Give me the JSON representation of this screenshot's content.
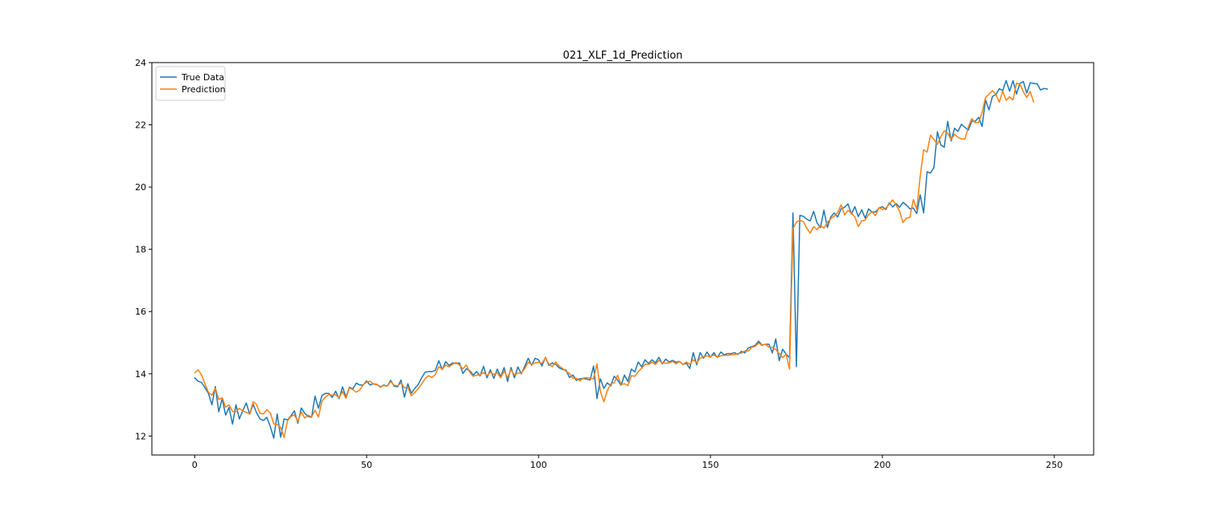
{
  "chart_data": {
    "type": "line",
    "title": "021_XLF_1d_Prediction",
    "xlabel": "",
    "ylabel": "",
    "xlim": [
      -12.45,
      261.45
    ],
    "ylim": [
      11.39,
      24.0
    ],
    "x_ticks": [
      0,
      50,
      100,
      150,
      200,
      250
    ],
    "y_ticks": [
      12,
      14,
      16,
      18,
      20,
      22,
      24
    ],
    "grid": false,
    "legend_position": "upper left",
    "series": [
      {
        "name": "True Data",
        "color": "#1f77b4",
        "values": [
          13.87,
          13.76,
          13.72,
          13.55,
          13.37,
          13.0,
          13.59,
          12.78,
          13.2,
          12.67,
          12.92,
          12.38,
          13.0,
          12.55,
          12.82,
          13.06,
          12.7,
          13.02,
          12.75,
          12.55,
          12.5,
          12.6,
          12.3,
          11.93,
          12.71,
          11.96,
          12.55,
          12.52,
          12.65,
          12.81,
          12.41,
          12.9,
          12.73,
          12.63,
          12.6,
          13.28,
          12.89,
          13.3,
          13.37,
          13.37,
          13.24,
          13.44,
          13.2,
          13.58,
          13.25,
          13.57,
          13.51,
          13.7,
          13.64,
          13.64,
          13.77,
          13.64,
          13.68,
          13.66,
          13.57,
          13.64,
          13.6,
          13.79,
          13.6,
          13.58,
          13.8,
          13.25,
          13.68,
          13.37,
          13.53,
          13.65,
          13.87,
          14.05,
          14.07,
          14.07,
          14.11,
          14.42,
          14.13,
          14.39,
          14.27,
          14.35,
          14.33,
          14.35,
          14.01,
          14.16,
          14.1,
          13.96,
          14.07,
          13.93,
          14.24,
          13.87,
          14.13,
          13.85,
          14.15,
          13.9,
          14.2,
          13.75,
          14.2,
          13.87,
          14.22,
          14.0,
          14.24,
          14.5,
          14.27,
          14.5,
          14.45,
          14.25,
          14.53,
          14.27,
          14.35,
          14.3,
          14.19,
          14.14,
          14.12,
          13.88,
          13.96,
          13.79,
          13.84,
          13.85,
          13.83,
          13.8,
          14.25,
          13.2,
          13.84,
          13.53,
          13.71,
          13.61,
          13.92,
          13.8,
          13.63,
          13.96,
          13.75,
          14.15,
          14.06,
          14.38,
          14.22,
          14.45,
          14.33,
          14.45,
          14.35,
          14.53,
          14.32,
          14.47,
          14.38,
          14.43,
          14.37,
          14.4,
          14.3,
          14.34,
          14.17,
          14.68,
          14.29,
          14.68,
          14.5,
          14.7,
          14.53,
          14.68,
          14.52,
          14.7,
          14.61,
          14.65,
          14.65,
          14.68,
          14.62,
          14.72,
          14.67,
          14.83,
          14.87,
          14.91,
          15.05,
          14.92,
          14.95,
          14.95,
          14.67,
          15.12,
          14.42,
          14.79,
          14.63,
          14.52,
          19.17,
          14.23,
          19.09,
          19.06,
          18.97,
          18.91,
          19.22,
          18.85,
          18.7,
          19.26,
          18.7,
          19.04,
          19.17,
          19.04,
          19.3,
          19.35,
          19.46,
          19.13,
          19.37,
          19.05,
          19.27,
          19.0,
          19.3,
          19.2,
          19.2,
          19.32,
          19.37,
          19.28,
          19.49,
          19.36,
          19.47,
          19.35,
          19.51,
          19.42,
          19.3,
          19.33,
          19.15,
          19.75,
          19.17,
          20.49,
          20.45,
          20.63,
          21.78,
          21.35,
          21.28,
          22.11,
          21.48,
          21.89,
          21.79,
          22.02,
          21.92,
          21.83,
          22.12,
          22.11,
          22.24,
          21.95,
          22.8,
          22.48,
          22.91,
          22.97,
          23.16,
          23.1,
          23.42,
          23.08,
          23.42,
          22.99,
          23.33,
          23.39,
          23.02,
          23.35,
          23.33,
          23.32,
          23.12,
          23.17,
          23.15
        ]
      },
      {
        "name": "Prediction",
        "color": "#ff7f0e",
        "values": [
          14.03,
          14.13,
          13.96,
          13.67,
          13.4,
          13.31,
          13.54,
          13.17,
          13.23,
          12.93,
          13.0,
          12.79,
          12.78,
          12.89,
          12.8,
          12.76,
          12.71,
          13.1,
          13.01,
          12.73,
          12.71,
          12.85,
          12.74,
          12.39,
          12.37,
          12.28,
          11.95,
          12.49,
          12.63,
          12.68,
          12.47,
          12.78,
          12.58,
          12.67,
          12.61,
          12.83,
          12.61,
          13.12,
          13.25,
          13.33,
          13.31,
          13.32,
          13.23,
          13.43,
          13.21,
          13.55,
          13.49,
          13.41,
          13.48,
          13.65,
          13.73,
          13.76,
          13.67,
          13.65,
          13.59,
          13.62,
          13.6,
          13.75,
          13.63,
          13.61,
          13.7,
          13.55,
          13.57,
          13.29,
          13.4,
          13.52,
          13.67,
          13.84,
          13.94,
          13.88,
          13.98,
          14.23,
          14.15,
          14.28,
          14.22,
          14.31,
          14.36,
          14.28,
          14.16,
          14.28,
          14.05,
          13.92,
          13.96,
          13.97,
          14.04,
          13.94,
          14.05,
          13.98,
          14.03,
          13.87,
          14.09,
          13.87,
          14.13,
          13.96,
          14.02,
          14.02,
          14.17,
          14.37,
          14.3,
          14.35,
          14.37,
          14.33,
          14.52,
          14.31,
          14.23,
          14.38,
          14.25,
          14.17,
          14.08,
          14.01,
          13.86,
          13.86,
          13.77,
          13.86,
          13.88,
          13.86,
          13.84,
          14.32,
          13.43,
          13.1,
          13.46,
          13.68,
          13.71,
          13.95,
          13.66,
          13.68,
          13.62,
          13.94,
          13.92,
          14.07,
          14.18,
          14.3,
          14.3,
          14.37,
          14.3,
          14.43,
          14.35,
          14.34,
          14.35,
          14.4,
          14.32,
          14.4,
          14.3,
          14.38,
          14.3,
          14.45,
          14.35,
          14.5,
          14.55,
          14.57,
          14.55,
          14.61,
          14.53,
          14.58,
          14.59,
          14.59,
          14.61,
          14.62,
          14.65,
          14.66,
          14.74,
          14.73,
          14.85,
          14.88,
          14.99,
          14.91,
          14.95,
          14.85,
          14.85,
          14.78,
          14.65,
          14.52,
          14.63,
          14.15,
          18.67,
          18.87,
          18.93,
          18.89,
          18.68,
          18.52,
          18.73,
          18.63,
          18.77,
          18.68,
          18.86,
          18.98,
          19.07,
          19.18,
          19.43,
          19.11,
          19.25,
          19.16,
          19.04,
          18.73,
          18.91,
          18.94,
          19.12,
          19.2,
          19.08,
          19.34,
          19.28,
          19.32,
          19.45,
          19.59,
          19.42,
          19.23,
          18.86,
          19.0,
          19.03,
          19.6,
          19.28,
          20.35,
          21.2,
          21.12,
          21.67,
          21.53,
          21.37,
          21.62,
          21.81,
          21.73,
          21.52,
          21.7,
          21.6,
          21.55,
          21.54,
          21.93,
          22.2,
          22.07,
          22.07,
          22.4,
          22.88,
          22.98,
          23.1,
          22.98,
          22.73,
          23.08,
          22.79,
          22.9,
          22.8,
          23.34,
          23.31,
          23.06,
          22.88,
          23.07,
          22.73
        ]
      }
    ]
  }
}
